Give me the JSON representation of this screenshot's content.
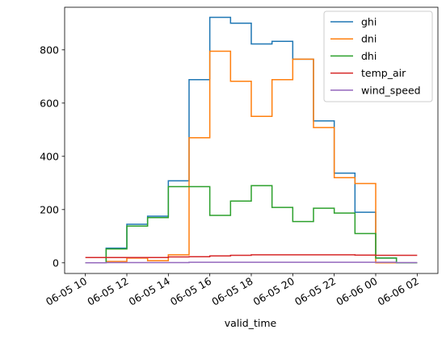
{
  "chart_data": {
    "type": "line",
    "step": "post",
    "xlabel": "valid_time",
    "ylabel": "",
    "xlim": [
      "2023-06-05T09:00",
      "2023-06-06T03:00"
    ],
    "ylim": [
      -40,
      960
    ],
    "yticks": [
      0,
      200,
      400,
      600,
      800
    ],
    "xticks": [
      {
        "t": "2023-06-05T10:00",
        "label": "06-05 10"
      },
      {
        "t": "2023-06-05T12:00",
        "label": "06-05 12"
      },
      {
        "t": "2023-06-05T14:00",
        "label": "06-05 14"
      },
      {
        "t": "2023-06-05T16:00",
        "label": "06-05 16"
      },
      {
        "t": "2023-06-05T18:00",
        "label": "06-05 18"
      },
      {
        "t": "2023-06-05T20:00",
        "label": "06-05 20"
      },
      {
        "t": "2023-06-05T22:00",
        "label": "06-05 22"
      },
      {
        "t": "2023-06-06T00:00",
        "label": "06-06 00"
      },
      {
        "t": "2023-06-06T02:00",
        "label": "06-06 02"
      }
    ],
    "x": [
      "2023-06-05T10:00",
      "2023-06-05T11:00",
      "2023-06-05T12:00",
      "2023-06-05T13:00",
      "2023-06-05T14:00",
      "2023-06-05T15:00",
      "2023-06-05T16:00",
      "2023-06-05T17:00",
      "2023-06-05T18:00",
      "2023-06-05T19:00",
      "2023-06-05T20:00",
      "2023-06-05T21:00",
      "2023-06-05T22:00",
      "2023-06-05T23:00",
      "2023-06-06T00:00",
      "2023-06-06T01:00",
      "2023-06-06T02:00"
    ],
    "series": [
      {
        "name": "ghi",
        "color": "#1f77b4",
        "values": [
          0,
          55,
          145,
          175,
          308,
          688,
          922,
          900,
          822,
          832,
          765,
          533,
          337,
          190,
          18,
          0,
          0
        ]
      },
      {
        "name": "dni",
        "color": "#ff7f0e",
        "values": [
          0,
          5,
          18,
          8,
          30,
          470,
          795,
          682,
          550,
          688,
          765,
          508,
          320,
          298,
          0,
          0,
          0
        ]
      },
      {
        "name": "dhi",
        "color": "#2ca02c",
        "values": [
          0,
          52,
          138,
          170,
          286,
          286,
          178,
          232,
          290,
          208,
          155,
          205,
          187,
          110,
          18,
          0,
          0
        ]
      },
      {
        "name": "temp_air",
        "color": "#d62728",
        "values": [
          20,
          20,
          20,
          20,
          22,
          23,
          26,
          28,
          30,
          30,
          30,
          30,
          30,
          29,
          28,
          28,
          28
        ]
      },
      {
        "name": "wind_speed",
        "color": "#9467bd",
        "values": [
          0,
          1,
          1,
          1,
          1,
          2,
          2,
          2,
          2,
          2,
          2,
          2,
          2,
          2,
          2,
          1,
          1
        ]
      }
    ],
    "legend_position": "top-right",
    "grid": false
  }
}
